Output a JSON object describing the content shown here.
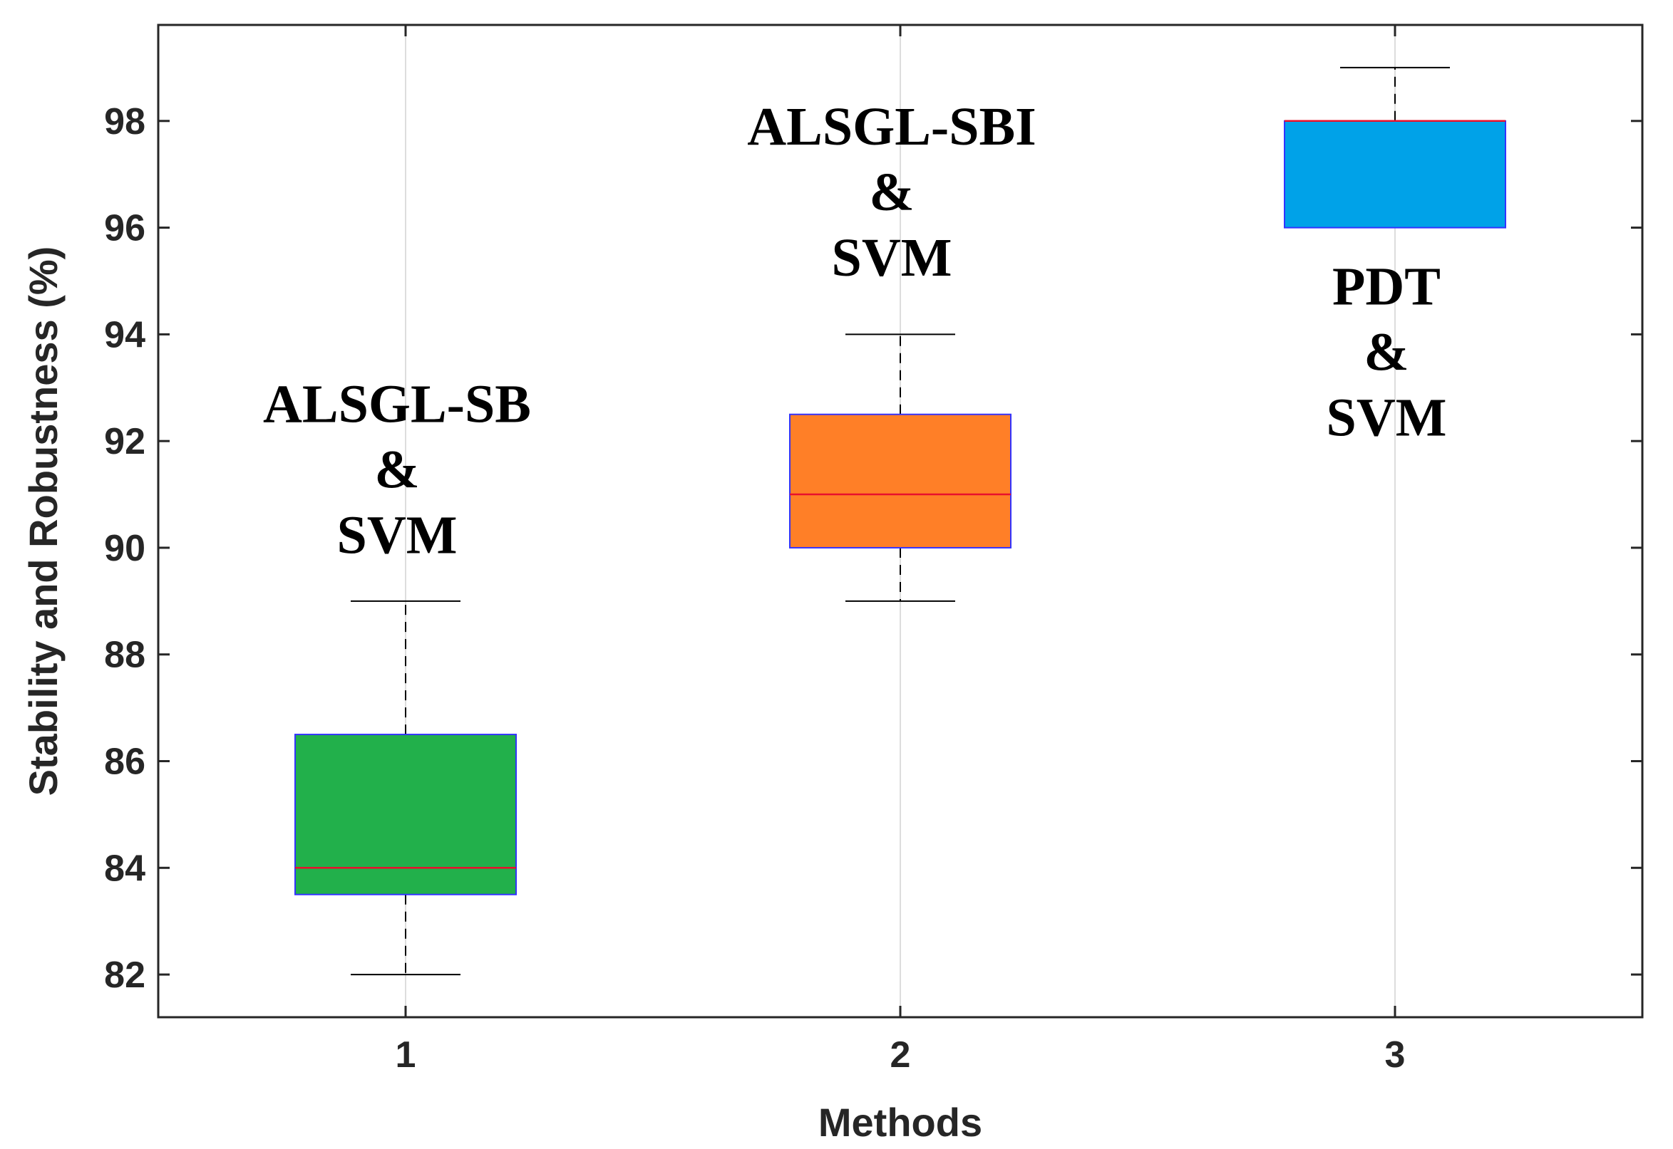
{
  "chart_data": {
    "type": "box",
    "title": "",
    "xlabel": "Methods",
    "ylabel": "Stability and Robustness (%)",
    "ylim": [
      81.2,
      99.8
    ],
    "yticks": [
      82,
      84,
      86,
      88,
      90,
      92,
      94,
      96,
      98
    ],
    "categories": [
      "1",
      "2",
      "3"
    ],
    "grid": "x",
    "boxes": [
      {
        "name": "ALSGL-SB & SVM",
        "label_lines": [
          "ALSGL-SB",
          "&",
          "SVM"
        ],
        "whisker_low": 82,
        "q1": 83.5,
        "median": 84,
        "q3": 86.5,
        "whisker_high": 89,
        "color": "#22B04B"
      },
      {
        "name": "ALSGL-SBI & SVM",
        "label_lines": [
          "ALSGL-SBI",
          "&",
          "SVM"
        ],
        "whisker_low": 89,
        "q1": 90,
        "median": 91,
        "q3": 92.5,
        "whisker_high": 94,
        "color": "#FF7F27"
      },
      {
        "name": "PDT & SVM",
        "label_lines": [
          "PDT",
          "&",
          "SVM"
        ],
        "whisker_low": 96,
        "q1": 96,
        "median": 98,
        "q3": 98,
        "whisker_high": 99,
        "color": "#00A2E8"
      }
    ],
    "annotation_anchor_y": [
      89.9,
      95.1,
      92.1
    ],
    "colors": {
      "median": "#E8112D",
      "box_edge": "#3333FF",
      "whisker": "#000000",
      "axis": "#262626",
      "grid": "#DDDDDD"
    }
  }
}
